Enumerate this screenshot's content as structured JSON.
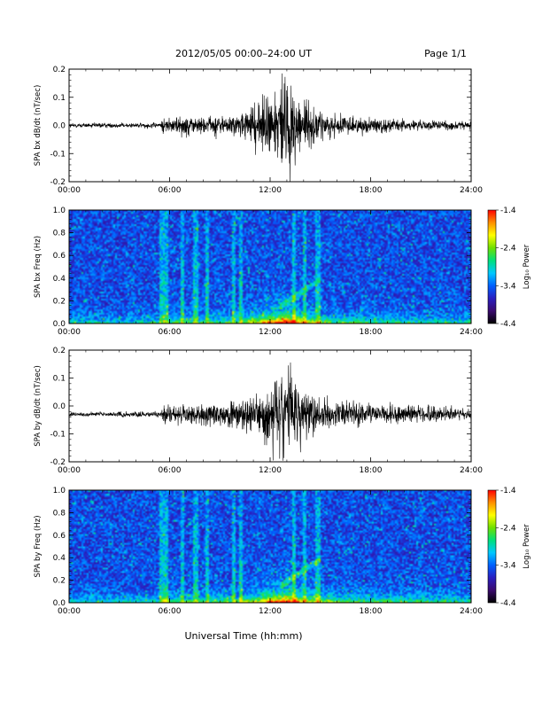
{
  "header": {
    "title": "2012/05/05  00:00–24:00 UT",
    "page": "Page 1/1"
  },
  "x_axis": {
    "title": "Universal Time (hh:mm)",
    "ticks": [
      "00:00",
      "06:00",
      "12:00",
      "18:00",
      "24:00"
    ],
    "range_hours": [
      0,
      24
    ]
  },
  "colorbar": {
    "label": "Log₁₀ Power",
    "ticks": [
      "-1.4",
      "-2.4",
      "-3.4",
      "-4.4"
    ],
    "range": [
      -4.4,
      -1.4
    ],
    "colors": [
      "#000000",
      "#3a0a6e",
      "#2a1fc0",
      "#0060ff",
      "#00c8ff",
      "#00e07a",
      "#6ee000",
      "#ffff00",
      "#ff9000",
      "#ff0000"
    ]
  },
  "chart_data": [
    {
      "type": "line",
      "id": "bx-ts",
      "title": "",
      "xlabel": "",
      "ylabel": "SPA bx dB/dt (nT/sec)",
      "xlim": [
        0,
        24
      ],
      "ylim": [
        -0.2,
        0.2
      ],
      "yticks": [
        "-0.2",
        "-0.1",
        "0.0",
        "0.1",
        "0.2"
      ],
      "baseline": 0.0,
      "envelope": {
        "hours": [
          0,
          3,
          5.5,
          5.6,
          8,
          10,
          11,
          12,
          13,
          14,
          15,
          16,
          18,
          20,
          22,
          24
        ],
        "amplitude": [
          0.01,
          0.01,
          0.012,
          0.035,
          0.04,
          0.045,
          0.08,
          0.16,
          0.2,
          0.12,
          0.06,
          0.04,
          0.035,
          0.025,
          0.02,
          0.018
        ]
      },
      "color": "#000000"
    },
    {
      "type": "heatmap",
      "id": "bx-spec",
      "title": "",
      "xlabel": "",
      "ylabel": "SPA bx Freq (Hz)",
      "xlim": [
        0,
        24
      ],
      "ylim": [
        0.0,
        1.0
      ],
      "yticks": [
        "0.0",
        "0.2",
        "0.4",
        "0.6",
        "0.8",
        "1.0"
      ],
      "zlabel": "Log₁₀ Power",
      "zlim": [
        -4.4,
        -1.4
      ]
    },
    {
      "type": "line",
      "id": "by-ts",
      "title": "",
      "xlabel": "",
      "ylabel": "SPA by dB/dt (nT/sec)",
      "xlim": [
        0,
        24
      ],
      "ylim": [
        -0.2,
        0.2
      ],
      "yticks": [
        "-0.2",
        "-0.1",
        "0.0",
        "0.1",
        "0.2"
      ],
      "baseline": -0.03,
      "envelope": {
        "hours": [
          0,
          3,
          5.5,
          5.6,
          8,
          10,
          11,
          12,
          13,
          14,
          15,
          16,
          18,
          20,
          22,
          24
        ],
        "amplitude": [
          0.008,
          0.01,
          0.012,
          0.04,
          0.045,
          0.05,
          0.09,
          0.15,
          0.2,
          0.11,
          0.07,
          0.05,
          0.045,
          0.04,
          0.035,
          0.02
        ]
      },
      "color": "#000000"
    },
    {
      "type": "heatmap",
      "id": "by-spec",
      "title": "",
      "xlabel": "",
      "ylabel": "SPA by Freq (Hz)",
      "xlim": [
        0,
        24
      ],
      "ylim": [
        0.0,
        1.0
      ],
      "yticks": [
        "0.0",
        "0.2",
        "0.4",
        "0.6",
        "0.8",
        "1.0"
      ],
      "zlabel": "Log₁₀ Power",
      "zlim": [
        -4.4,
        -1.4
      ]
    }
  ]
}
